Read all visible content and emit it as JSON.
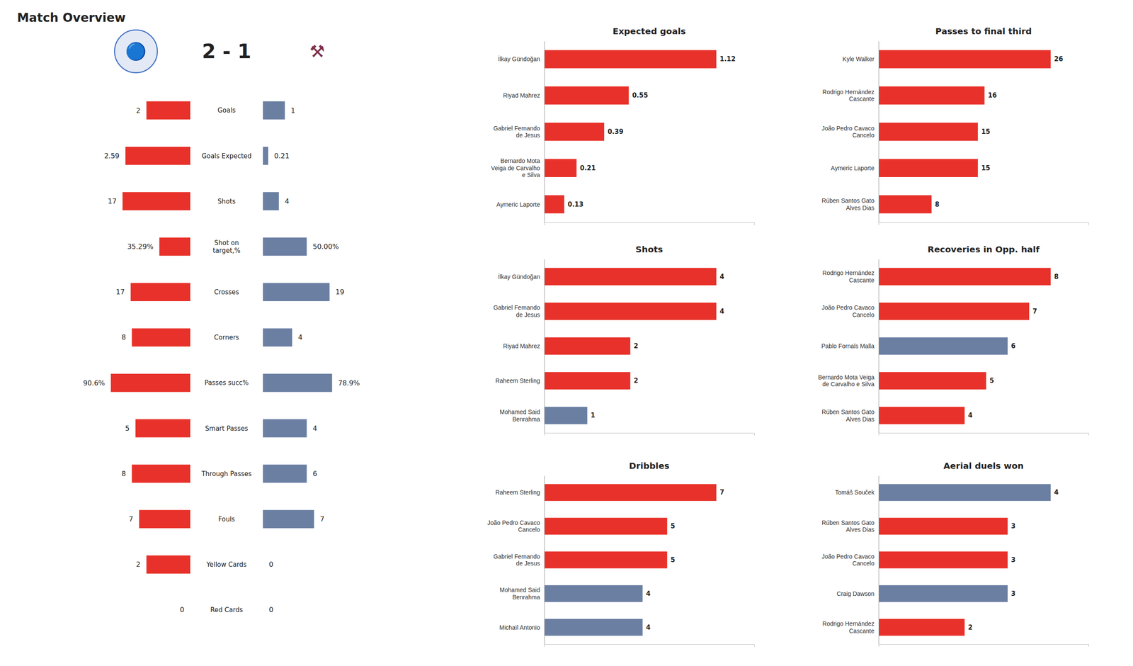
{
  "chart_data": [
    {
      "type": "butterfly",
      "title": "Match Overview",
      "subtitle": "2 - 1",
      "annotations": [
        "🔵",
        "⚒"
      ],
      "categories": [
        "Goals",
        "Goals Expected",
        "Shots",
        "Shot on\ntarget,%",
        "Crosses",
        "Corners",
        "Passes succ%",
        "Smart Passes",
        "Through Passes",
        "Fouls",
        "Yellow Cards",
        "Red Cards"
      ],
      "max_values": [
        4,
        3.5,
        22,
        100,
        25,
        12,
        100,
        8,
        12,
        12,
        4,
        2
      ],
      "series": [
        {
          "color": "#E8312A",
          "values": [
            2,
            2.59,
            17,
            35.29,
            17,
            8,
            90.6,
            5,
            8,
            7,
            2,
            0
          ],
          "value_labels": [
            "2",
            "2.59",
            "17",
            "35.29%",
            "17",
            "8",
            "90.6%",
            "5",
            "8",
            "7",
            "2",
            "0"
          ]
        },
        {
          "color": "#6B7FA3",
          "values": [
            1,
            0.21,
            4,
            50.0,
            19,
            4,
            78.9,
            4,
            6,
            7,
            0,
            0
          ],
          "value_labels": [
            "1",
            "0.21",
            "4",
            "50.00%",
            "19",
            "4",
            "78.9%",
            "4",
            "6",
            "7",
            "0",
            "0"
          ]
        }
      ]
    },
    {
      "type": "bar",
      "orientation": "horizontal",
      "title": "Expected goals",
      "categories": [
        "İlkay Gündoğan",
        "Riyad Mahrez",
        "Gabriel Fernando\nde Jesus",
        "Bernardo Mota\nVeiga de Carvalho\ne Silva",
        "Aymeric  Laporte"
      ],
      "values": [
        1.12,
        0.55,
        0.39,
        0.21,
        0.13
      ],
      "colors": [
        "#E8312A",
        "#E8312A",
        "#E8312A",
        "#E8312A",
        "#E8312A"
      ],
      "xlim": [
        0,
        1.3664
      ],
      "data_labels": true,
      "tick_labels": "y"
    },
    {
      "type": "bar",
      "orientation": "horizontal",
      "title": "Shots",
      "categories": [
        "İlkay Gündoğan",
        "Gabriel Fernando\nde Jesus",
        "Riyad Mahrez",
        "Raheem Sterling",
        "Mohamed Said\nBenrahma"
      ],
      "values": [
        4,
        4,
        2,
        2,
        1
      ],
      "colors": [
        "#E8312A",
        "#E8312A",
        "#E8312A",
        "#E8312A",
        "#6B7FA3"
      ],
      "xlim": [
        0,
        4.88
      ],
      "data_labels": true,
      "tick_labels": "y"
    },
    {
      "type": "bar",
      "orientation": "horizontal",
      "title": "Dribbles",
      "categories": [
        "Raheem Sterling",
        "João Pedro Cavaco\nCancelo",
        "Gabriel Fernando\nde Jesus",
        "Mohamed Said\nBenrahma",
        "Michaïl Antonio"
      ],
      "values": [
        7,
        5,
        5,
        4,
        4
      ],
      "colors": [
        "#E8312A",
        "#E8312A",
        "#E8312A",
        "#6B7FA3",
        "#6B7FA3"
      ],
      "xlim": [
        0,
        8.54
      ],
      "data_labels": true,
      "tick_labels": "y"
    },
    {
      "type": "bar",
      "orientation": "horizontal",
      "title": "Passes to final third",
      "categories": [
        "Kyle Walker",
        "Rodrigo Hernández\nCascante",
        "João Pedro Cavaco\nCancelo",
        "Aymeric  Laporte",
        "Rúben  Santos Gato\nAlves Dias"
      ],
      "values": [
        26,
        16,
        15,
        15,
        8
      ],
      "colors": [
        "#E8312A",
        "#E8312A",
        "#E8312A",
        "#E8312A",
        "#E8312A"
      ],
      "xlim": [
        0,
        31.72
      ],
      "data_labels": true,
      "tick_labels": "y"
    },
    {
      "type": "bar",
      "orientation": "horizontal",
      "title": "Recoveries in Opp. half",
      "categories": [
        "Rodrigo Hernández\nCascante",
        "João Pedro Cavaco\nCancelo",
        "Pablo Fornals Malla",
        "Bernardo Mota Veiga\nde Carvalho e Silva",
        "Rúben  Santos Gato\nAlves Dias"
      ],
      "values": [
        8,
        7,
        6,
        5,
        4
      ],
      "colors": [
        "#E8312A",
        "#E8312A",
        "#6B7FA3",
        "#E8312A",
        "#E8312A"
      ],
      "xlim": [
        0,
        9.76
      ],
      "data_labels": true,
      "tick_labels": "y"
    },
    {
      "type": "bar",
      "orientation": "horizontal",
      "title": "Aerial duels won",
      "categories": [
        "Tomáš Souček",
        "Rúben  Santos Gato\nAlves Dias",
        "João Pedro Cavaco\nCancelo",
        "Craig Dawson",
        "Rodrigo Hernández\nCascante"
      ],
      "values": [
        4,
        3,
        3,
        3,
        2
      ],
      "colors": [
        "#6B7FA3",
        "#E8312A",
        "#E8312A",
        "#6B7FA3",
        "#E8312A"
      ],
      "xlim": [
        0,
        4.88
      ],
      "data_labels": true,
      "tick_labels": "y"
    }
  ]
}
